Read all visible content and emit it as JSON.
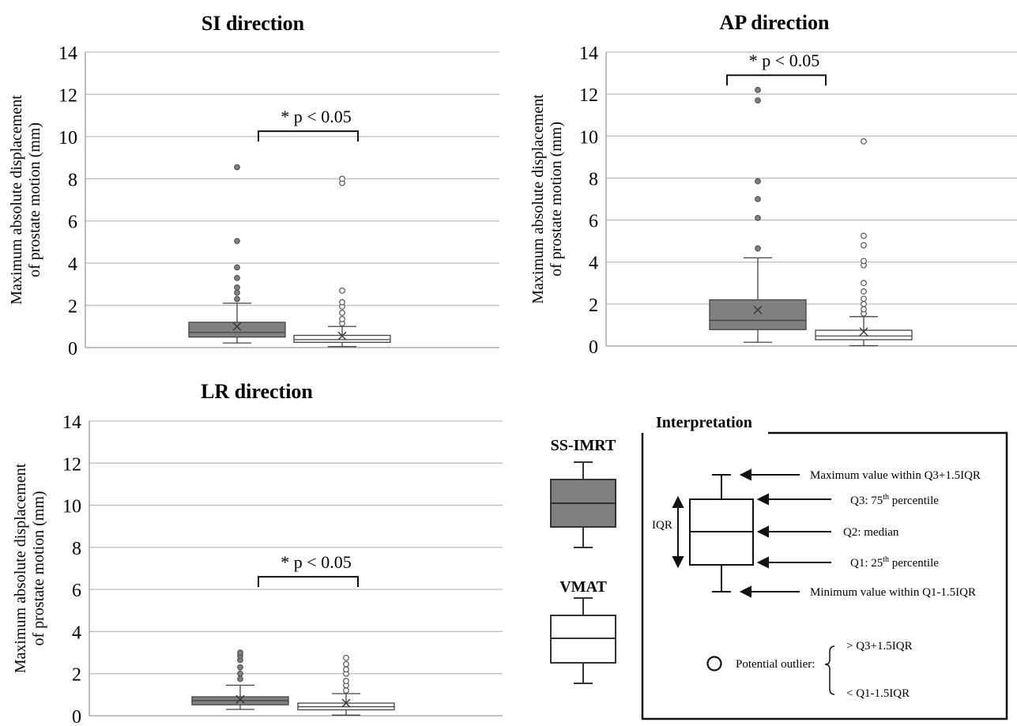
{
  "chart_data": [
    {
      "type": "box",
      "title": "SI direction",
      "ylabel": "Maximum absolute displacement of prostate motion (mm)",
      "ylabel_lines": [
        "Maximum absolute displacement",
        "of prostate motion (mm)"
      ],
      "ylim": [
        0,
        14
      ],
      "yticks": [
        0,
        2,
        4,
        6,
        8,
        10,
        12,
        14
      ],
      "grid": true,
      "significance": "* p < 0.05",
      "series": [
        {
          "name": "SS-IMRT",
          "fill": "#808080",
          "min": 0.22,
          "q1": 0.5,
          "median": 0.72,
          "q3": 1.2,
          "max": 2.1,
          "mean": 1.0,
          "outliers": [
            2.3,
            2.6,
            2.85,
            3.3,
            3.8,
            5.05,
            8.55
          ]
        },
        {
          "name": "VMAT",
          "fill": "#ffffff",
          "min": 0.05,
          "q1": 0.25,
          "median": 0.38,
          "q3": 0.58,
          "max": 1.0,
          "mean": 0.55,
          "outliers": [
            1.15,
            1.35,
            1.65,
            1.95,
            2.15,
            2.7,
            7.8,
            8.0
          ]
        }
      ]
    },
    {
      "type": "box",
      "title": "AP direction",
      "ylabel": "Maximum absolute displacement of prostate motion (mm)",
      "ylabel_lines": [
        "Maximum absolute displacement",
        "of prostate motion (mm)"
      ],
      "ylim": [
        0,
        14
      ],
      "yticks": [
        0,
        2,
        4,
        6,
        8,
        10,
        12,
        14
      ],
      "grid": true,
      "significance": "* p < 0.05",
      "series": [
        {
          "name": "SS-IMRT",
          "fill": "#808080",
          "min": 0.18,
          "q1": 0.78,
          "median": 1.22,
          "q3": 2.2,
          "max": 4.2,
          "mean": 1.72,
          "outliers": [
            4.65,
            6.1,
            7.0,
            7.85,
            11.7,
            12.2
          ]
        },
        {
          "name": "VMAT",
          "fill": "#ffffff",
          "min": 0.02,
          "q1": 0.3,
          "median": 0.48,
          "q3": 0.75,
          "max": 1.4,
          "mean": 0.68,
          "outliers": [
            1.55,
            1.75,
            2.0,
            2.25,
            2.6,
            3.0,
            3.85,
            4.05,
            4.8,
            5.25,
            9.75
          ]
        }
      ]
    },
    {
      "type": "box",
      "title": "LR direction",
      "ylabel": "Maximum absolute displacement of prostate motion (mm)",
      "ylabel_lines": [
        "Maximum absolute displacement",
        "of prostate motion (mm)"
      ],
      "ylim": [
        0,
        14
      ],
      "yticks": [
        0,
        2,
        4,
        6,
        8,
        10,
        12,
        14
      ],
      "grid": true,
      "significance": "* p < 0.05",
      "series": [
        {
          "name": "SS-IMRT",
          "fill": "#808080",
          "min": 0.3,
          "q1": 0.52,
          "median": 0.72,
          "q3": 0.9,
          "max": 1.45,
          "mean": 0.78,
          "outliers": [
            1.75,
            2.0,
            2.3,
            2.65,
            2.85,
            3.0
          ]
        },
        {
          "name": "VMAT",
          "fill": "#ffffff",
          "min": 0.03,
          "q1": 0.28,
          "median": 0.43,
          "q3": 0.6,
          "max": 1.05,
          "mean": 0.6,
          "outliers": [
            1.2,
            1.45,
            1.65,
            2.0,
            2.2,
            2.45,
            2.75
          ]
        }
      ]
    }
  ],
  "legend": {
    "items": [
      {
        "label": "SS-IMRT",
        "fill": "#808080"
      },
      {
        "label": "VMAT",
        "fill": "#ffffff"
      }
    ]
  },
  "interpretation": {
    "title": "Interpretation",
    "max_label": "Maximum value within Q3+1.5IQR",
    "q3_prefix": "Q3: 75",
    "q3_sup": "th",
    "q3_suffix": " percentile",
    "q2_label": "Q2: median",
    "q1_prefix": "Q1: 25",
    "q1_sup": "th",
    "q1_suffix": " percentile",
    "min_label": "Minimum value within Q1-1.5IQR",
    "iqr_label": "IQR",
    "outlier_label": "Potential outlier:",
    "outlier_upper": "> Q3+1.5IQR",
    "outlier_lower": "< Q1-1.5IQR"
  }
}
